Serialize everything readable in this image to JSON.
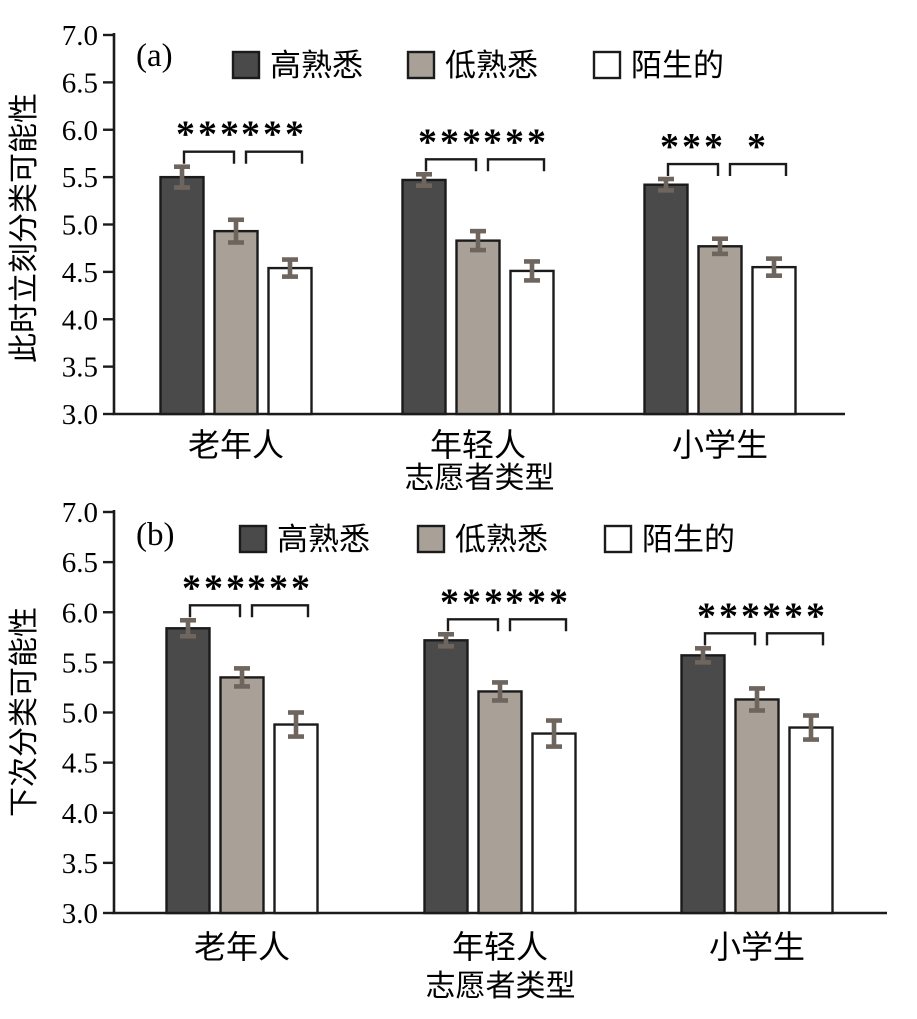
{
  "figure": {
    "background": "#ffffff",
    "axis_color": "#1b1b1b",
    "text_color": "#000000",
    "bar_border_color": "#1b1b1b",
    "error_bar_color": "#6e655e",
    "series_colors": [
      "#4a4a4a",
      "#a9a098",
      "#ffffff"
    ]
  },
  "chart_data": [
    {
      "type": "bar",
      "panel_label": "(a)",
      "ylabel": "此时立刻分类可能性",
      "xlabel": "志愿者类型",
      "categories": [
        "老年人",
        "年轻人",
        "小学生"
      ],
      "ylim": [
        3.0,
        7.0
      ],
      "ytick_step": 0.5,
      "yticks": [
        "3.0",
        "3.5",
        "4.0",
        "4.5",
        "5.0",
        "5.5",
        "6.0",
        "6.5",
        "7.0"
      ],
      "legend": [
        "高熟悉",
        "低熟悉",
        "陌生的"
      ],
      "legend_position": "top",
      "grid": false,
      "series": [
        {
          "name": "高熟悉",
          "values": [
            5.5,
            5.47,
            5.42
          ],
          "errors": [
            0.11,
            0.06,
            0.06
          ]
        },
        {
          "name": "低熟悉",
          "values": [
            4.93,
            4.83,
            4.77
          ],
          "errors": [
            0.12,
            0.1,
            0.08
          ]
        },
        {
          "name": "陌生的",
          "values": [
            4.54,
            4.51,
            4.55
          ],
          "errors": [
            0.09,
            0.1,
            0.09
          ]
        }
      ],
      "significance": [
        {
          "category": "老年人",
          "pair": [
            "高熟悉",
            "低熟悉"
          ],
          "label": "***"
        },
        {
          "category": "老年人",
          "pair": [
            "低熟悉",
            "陌生的"
          ],
          "label": "***"
        },
        {
          "category": "年轻人",
          "pair": [
            "高熟悉",
            "低熟悉"
          ],
          "label": "***"
        },
        {
          "category": "年轻人",
          "pair": [
            "低熟悉",
            "陌生的"
          ],
          "label": "***"
        },
        {
          "category": "小学生",
          "pair": [
            "高熟悉",
            "低熟悉"
          ],
          "label": "***"
        },
        {
          "category": "小学生",
          "pair": [
            "低熟悉",
            "陌生的"
          ],
          "label": "*"
        }
      ]
    },
    {
      "type": "bar",
      "panel_label": "(b)",
      "ylabel": "下次分类可能性",
      "xlabel": "志愿者类型",
      "categories": [
        "老年人",
        "年轻人",
        "小学生"
      ],
      "ylim": [
        3.0,
        7.0
      ],
      "ytick_step": 0.5,
      "yticks": [
        "3.0",
        "3.5",
        "4.0",
        "4.5",
        "5.0",
        "5.5",
        "6.0",
        "6.5",
        "7.0"
      ],
      "legend": [
        "高熟悉",
        "低熟悉",
        "陌生的"
      ],
      "legend_position": "top",
      "grid": false,
      "series": [
        {
          "name": "高熟悉",
          "values": [
            5.84,
            5.72,
            5.57
          ],
          "errors": [
            0.08,
            0.06,
            0.07
          ]
        },
        {
          "name": "低熟悉",
          "values": [
            5.35,
            5.21,
            5.13
          ],
          "errors": [
            0.09,
            0.09,
            0.11
          ]
        },
        {
          "name": "陌生的",
          "values": [
            4.88,
            4.79,
            4.85
          ],
          "errors": [
            0.12,
            0.13,
            0.12
          ]
        }
      ],
      "significance": [
        {
          "category": "老年人",
          "pair": [
            "高熟悉",
            "低熟悉"
          ],
          "label": "***"
        },
        {
          "category": "老年人",
          "pair": [
            "低熟悉",
            "陌生的"
          ],
          "label": "***"
        },
        {
          "category": "年轻人",
          "pair": [
            "高熟悉",
            "低熟悉"
          ],
          "label": "***"
        },
        {
          "category": "年轻人",
          "pair": [
            "低熟悉",
            "陌生的"
          ],
          "label": "***"
        },
        {
          "category": "小学生",
          "pair": [
            "高熟悉",
            "低熟悉"
          ],
          "label": "***"
        },
        {
          "category": "小学生",
          "pair": [
            "低熟悉",
            "陌生的"
          ],
          "label": "***"
        }
      ]
    }
  ]
}
